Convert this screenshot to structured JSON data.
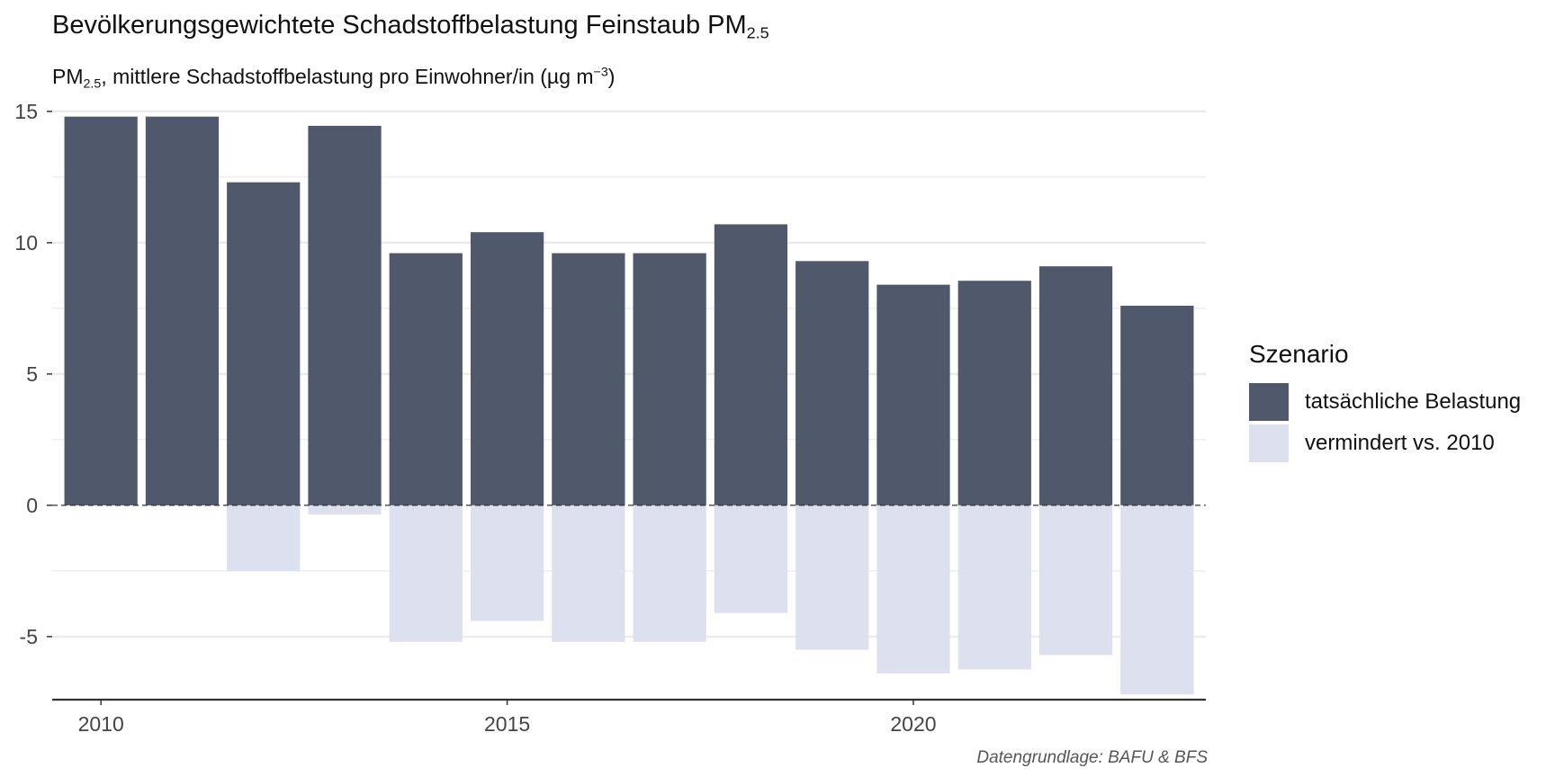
{
  "title_main": "Bevölkerungsgewichtete Schadstoffbelastung Feinstaub PM",
  "title_sub": "2.5",
  "subtitle_pre": "PM",
  "subtitle_sub": "2.5",
  "subtitle_main": ", mittlere Schadstoffbelastung pro Einwohner/in (µg m",
  "subtitle_sup": "−3",
  "subtitle_end": ")",
  "caption": "Datengrundlage: BAFU & BFS",
  "colors": {
    "actual": "#4f596b",
    "reduced": "#dde0ee",
    "grid": "#ebebeb",
    "zero_line": "#333333",
    "axis_line": "#333333"
  },
  "chart_data": {
    "type": "bar",
    "x": [
      2010,
      2011,
      2012,
      2013,
      2014,
      2015,
      2016,
      2017,
      2018,
      2019,
      2020,
      2021,
      2022,
      2023
    ],
    "series": [
      {
        "name": "tatsächliche Belastung",
        "values": [
          14.8,
          14.8,
          12.3,
          14.45,
          9.6,
          10.4,
          9.6,
          9.6,
          10.7,
          9.3,
          8.4,
          8.55,
          9.1,
          7.6
        ]
      },
      {
        "name": "vermindert vs. 2010",
        "values": [
          0,
          0,
          -2.5,
          -0.35,
          -5.2,
          -4.4,
          -5.2,
          -5.2,
          -4.1,
          -5.5,
          -6.4,
          -6.25,
          -5.7,
          -7.2
        ]
      }
    ],
    "xticks": [
      2010,
      2015,
      2020
    ],
    "xtick_labels": [
      "2010",
      "2015",
      "2020"
    ],
    "yticks": [
      -5,
      0,
      5,
      10,
      15
    ],
    "ytick_labels": [
      "-5",
      "0",
      "5",
      "10",
      "15"
    ],
    "ylim": [
      -7.4,
      15.2
    ],
    "xlim": [
      2009.4,
      2023.6
    ],
    "xlabel": "",
    "ylabel": "",
    "grid": true,
    "legend_title": "Szenario",
    "legend_position": "right"
  }
}
